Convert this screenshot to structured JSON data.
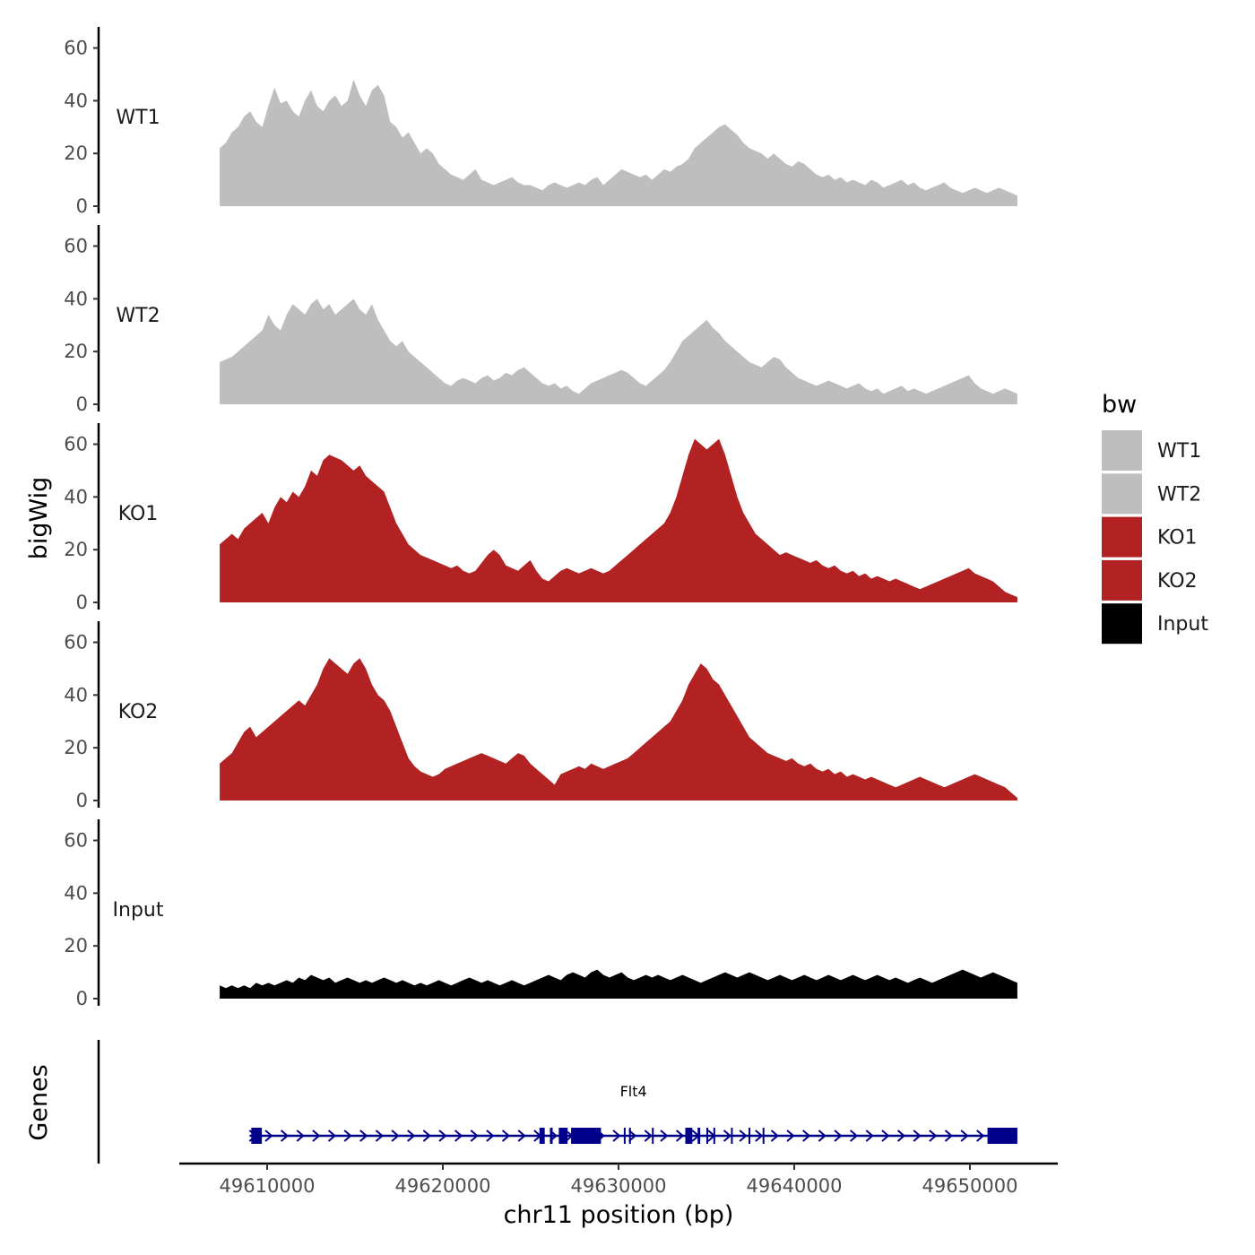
{
  "chart_data": {
    "type": "area",
    "chrom": "chr11",
    "xlabel": "chr11 position (bp)",
    "ylabel": "bigWig",
    "genes_label": "Genes",
    "xlim": [
      49605000,
      49655000
    ],
    "x_ticks": [
      49610000,
      49620000,
      49630000,
      49640000,
      49650000
    ],
    "x_tick_labels": [
      "49610000",
      "49620000",
      "49630000",
      "49640000",
      "49650000"
    ],
    "ylim": [
      0,
      68
    ],
    "y_ticks": [
      0,
      20,
      40,
      60
    ],
    "y_tick_labels": [
      "0",
      "20",
      "40",
      "60"
    ],
    "legend": {
      "title": "bw",
      "entries": [
        {
          "label": "WT1",
          "color": "#bebebe"
        },
        {
          "label": "WT2",
          "color": "#bebebe"
        },
        {
          "label": "KO1",
          "color": "#b22222"
        },
        {
          "label": "KO2",
          "color": "#b22222"
        },
        {
          "label": "Input",
          "color": "#000000"
        }
      ]
    },
    "series": [
      {
        "name": "WT1",
        "label": "WT1",
        "color": "#bebebe",
        "x_start": 49607300,
        "x_end": 49652700,
        "values": [
          22,
          24,
          28,
          30,
          34,
          36,
          32,
          30,
          38,
          45,
          39,
          40,
          36,
          34,
          40,
          44,
          38,
          36,
          40,
          42,
          38,
          40,
          48,
          42,
          38,
          44,
          46,
          42,
          32,
          30,
          26,
          28,
          24,
          20,
          22,
          20,
          16,
          14,
          12,
          11,
          10,
          12,
          14,
          10,
          9,
          8,
          9,
          10,
          11,
          9,
          8,
          8,
          7,
          6,
          8,
          9,
          8,
          7,
          8,
          9,
          8,
          10,
          11,
          8,
          10,
          12,
          14,
          13,
          12,
          11,
          12,
          10,
          12,
          14,
          13,
          15,
          16,
          18,
          22,
          24,
          26,
          28,
          30,
          31,
          29,
          27,
          24,
          22,
          21,
          20,
          18,
          20,
          18,
          16,
          15,
          17,
          16,
          14,
          12,
          11,
          12,
          10,
          11,
          9,
          10,
          9,
          8,
          10,
          9,
          7,
          8,
          9,
          10,
          8,
          9,
          7,
          6,
          7,
          8,
          9,
          7,
          6,
          5,
          6,
          7,
          6,
          5,
          6,
          7,
          6,
          5,
          4
        ]
      },
      {
        "name": "WT2",
        "label": "WT2",
        "color": "#bebebe",
        "x_start": 49607300,
        "x_end": 49652700,
        "values": [
          16,
          17,
          18,
          20,
          22,
          24,
          26,
          28,
          34,
          30,
          28,
          34,
          38,
          36,
          34,
          38,
          40,
          36,
          38,
          34,
          36,
          38,
          40,
          36,
          34,
          38,
          32,
          28,
          24,
          22,
          24,
          20,
          18,
          16,
          14,
          12,
          10,
          8,
          7,
          9,
          10,
          9,
          8,
          10,
          11,
          9,
          10,
          12,
          11,
          13,
          14,
          12,
          10,
          8,
          7,
          8,
          6,
          7,
          5,
          4,
          6,
          8,
          9,
          10,
          11,
          12,
          13,
          12,
          10,
          8,
          7,
          9,
          11,
          13,
          16,
          20,
          24,
          26,
          28,
          30,
          32,
          29,
          27,
          24,
          22,
          20,
          18,
          16,
          15,
          14,
          16,
          18,
          17,
          14,
          12,
          10,
          9,
          8,
          7,
          8,
          9,
          8,
          7,
          6,
          7,
          8,
          6,
          5,
          6,
          4,
          5,
          6,
          7,
          5,
          6,
          5,
          4,
          5,
          6,
          7,
          8,
          9,
          10,
          11,
          8,
          6,
          5,
          4,
          5,
          6,
          5,
          4
        ]
      },
      {
        "name": "KO1",
        "label": "KO1",
        "color": "#b22222",
        "x_start": 49607300,
        "x_end": 49652700,
        "values": [
          22,
          24,
          26,
          24,
          28,
          30,
          32,
          34,
          30,
          36,
          40,
          38,
          42,
          40,
          44,
          50,
          48,
          54,
          56,
          55,
          54,
          52,
          50,
          52,
          48,
          46,
          44,
          42,
          36,
          30,
          26,
          22,
          20,
          18,
          17,
          16,
          15,
          14,
          13,
          14,
          12,
          11,
          12,
          15,
          18,
          20,
          18,
          14,
          13,
          12,
          14,
          16,
          12,
          9,
          8,
          10,
          12,
          13,
          12,
          11,
          12,
          13,
          12,
          11,
          12,
          14,
          16,
          18,
          20,
          22,
          24,
          26,
          28,
          30,
          34,
          40,
          48,
          56,
          62,
          60,
          58,
          60,
          62,
          56,
          48,
          40,
          34,
          30,
          26,
          24,
          22,
          20,
          18,
          19,
          18,
          17,
          16,
          15,
          16,
          14,
          13,
          14,
          12,
          11,
          12,
          10,
          11,
          9,
          10,
          9,
          8,
          9,
          8,
          7,
          6,
          5,
          6,
          7,
          8,
          9,
          10,
          11,
          12,
          13,
          11,
          10,
          9,
          8,
          6,
          4,
          3,
          2
        ]
      },
      {
        "name": "KO2",
        "label": "KO2",
        "color": "#b22222",
        "x_start": 49607300,
        "x_end": 49652700,
        "values": [
          14,
          16,
          18,
          22,
          26,
          28,
          24,
          26,
          28,
          30,
          32,
          34,
          36,
          38,
          36,
          40,
          44,
          50,
          54,
          52,
          50,
          48,
          52,
          54,
          50,
          44,
          40,
          38,
          34,
          28,
          22,
          16,
          13,
          11,
          10,
          9,
          10,
          12,
          13,
          14,
          15,
          16,
          17,
          18,
          17,
          16,
          15,
          14,
          16,
          18,
          17,
          14,
          12,
          10,
          8,
          6,
          10,
          11,
          12,
          13,
          12,
          14,
          13,
          12,
          13,
          14,
          15,
          16,
          18,
          20,
          22,
          24,
          26,
          28,
          30,
          34,
          38,
          44,
          48,
          52,
          50,
          46,
          44,
          40,
          36,
          32,
          28,
          24,
          22,
          20,
          18,
          17,
          16,
          15,
          16,
          14,
          13,
          14,
          12,
          11,
          12,
          10,
          11,
          9,
          10,
          9,
          8,
          9,
          8,
          7,
          6,
          5,
          6,
          7,
          8,
          9,
          8,
          7,
          6,
          5,
          6,
          7,
          8,
          9,
          10,
          9,
          8,
          7,
          6,
          5,
          3,
          1
        ]
      },
      {
        "name": "Input",
        "label": "Input",
        "color": "#000000",
        "x_start": 49607300,
        "x_end": 49652700,
        "values": [
          5,
          4,
          5,
          4,
          5,
          4,
          6,
          5,
          6,
          5,
          6,
          7,
          6,
          8,
          7,
          9,
          8,
          7,
          8,
          6,
          7,
          8,
          7,
          6,
          7,
          6,
          7,
          8,
          7,
          6,
          7,
          6,
          5,
          6,
          5,
          6,
          7,
          6,
          5,
          6,
          7,
          8,
          7,
          6,
          7,
          6,
          5,
          6,
          7,
          6,
          5,
          6,
          7,
          8,
          9,
          8,
          7,
          9,
          10,
          9,
          8,
          10,
          11,
          9,
          8,
          9,
          10,
          8,
          7,
          8,
          9,
          8,
          9,
          8,
          7,
          8,
          9,
          8,
          7,
          6,
          7,
          8,
          9,
          10,
          9,
          8,
          9,
          10,
          9,
          8,
          7,
          8,
          9,
          8,
          7,
          8,
          9,
          8,
          7,
          8,
          9,
          8,
          7,
          8,
          9,
          8,
          7,
          8,
          9,
          8,
          7,
          8,
          7,
          6,
          7,
          8,
          7,
          6,
          7,
          8,
          9,
          10,
          11,
          10,
          9,
          8,
          9,
          10,
          9,
          8,
          7,
          6
        ]
      }
    ],
    "gene_track": {
      "gene_name": "Flt4",
      "strand": "+",
      "color": "#00008b",
      "start": 49609000,
      "end": 49652700,
      "exons": [
        [
          49609100,
          49609700
        ],
        [
          49625500,
          49625800
        ],
        [
          49626100,
          49626250
        ],
        [
          49626600,
          49627100
        ],
        [
          49627300,
          49629000
        ],
        [
          49630300,
          49630400
        ],
        [
          49630600,
          49630700
        ],
        [
          49631900,
          49632000
        ],
        [
          49633800,
          49634200
        ],
        [
          49634500,
          49634650
        ],
        [
          49635000,
          49635100
        ],
        [
          49635400,
          49635500
        ],
        [
          49636400,
          49636500
        ],
        [
          49637400,
          49637500
        ],
        [
          49638200,
          49638300
        ],
        [
          49651000,
          49652700
        ]
      ]
    }
  }
}
